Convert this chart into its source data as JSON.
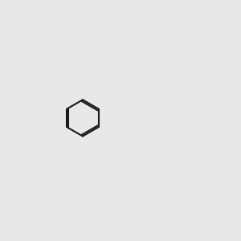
{
  "bg_color": "#e8e8e8",
  "bond_color": "#1a1a1a",
  "n_color": "#2020ff",
  "o_color": "#ff2020",
  "cl_color": "#20aa20",
  "f_color": "#ee10aa",
  "h_color": "#7a7a7a",
  "line_width": 1.5,
  "title": ""
}
